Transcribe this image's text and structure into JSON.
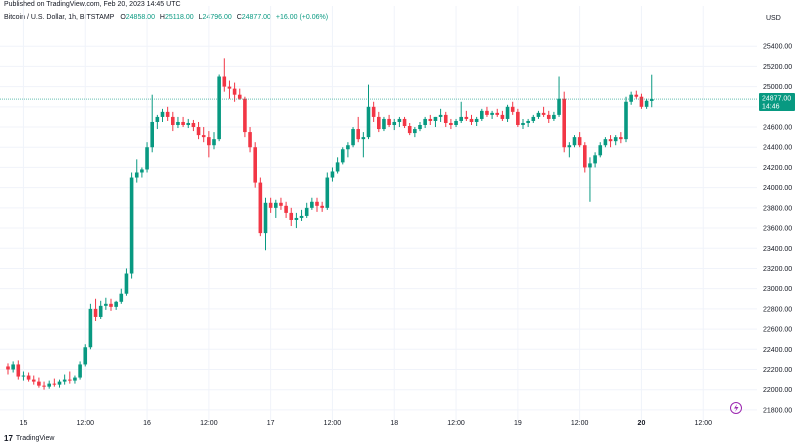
{
  "published": "Published on TradingView.com, Feb 20, 2023 14:45 UTC",
  "header": {
    "symbol": "Bitcoin / U.S. Dollar, 1h, BITSTAMP",
    "o_label": "O",
    "o": "24858.00",
    "h_label": "H",
    "h": "25118.00",
    "l_label": "L",
    "l": "24796.00",
    "c_label": "C",
    "c": "24877.00",
    "change": "+16.00 (+0.06%)"
  },
  "footer": {
    "brand": "TradingView",
    "logo": "17"
  },
  "colors": {
    "up": "#089981",
    "down": "#f23645",
    "grid": "#f0f3fa",
    "price_line": "#089981",
    "axis_text": "#131722"
  },
  "chart_data": {
    "type": "candlestick",
    "currency_label": "USD",
    "ylim": [
      21700,
      25600
    ],
    "y_ticks": [
      21800,
      22000,
      22200,
      22400,
      22600,
      22800,
      23000,
      23200,
      23400,
      23600,
      23800,
      24000,
      24200,
      24400,
      24600,
      24800,
      25000,
      25200,
      25400
    ],
    "x_ticks": [
      {
        "i": 3,
        "label": "15",
        "bold": false
      },
      {
        "i": 15,
        "label": "12:00",
        "bold": false
      },
      {
        "i": 27,
        "label": "16",
        "bold": false
      },
      {
        "i": 39,
        "label": "12:00",
        "bold": false
      },
      {
        "i": 51,
        "label": "17",
        "bold": false
      },
      {
        "i": 63,
        "label": "12:00",
        "bold": false
      },
      {
        "i": 75,
        "label": "18",
        "bold": false
      },
      {
        "i": 87,
        "label": "12:00",
        "bold": false
      },
      {
        "i": 99,
        "label": "19",
        "bold": false
      },
      {
        "i": 111,
        "label": "12:00",
        "bold": false
      },
      {
        "i": 123,
        "label": "20",
        "bold": true
      },
      {
        "i": 135,
        "label": "12:00",
        "bold": false
      }
    ],
    "last_price": {
      "value": 24877,
      "label": "24877.00",
      "time": "14:46"
    },
    "candles": [
      [
        22230,
        22260,
        22150,
        22200
      ],
      [
        22200,
        22280,
        22170,
        22250
      ],
      [
        22250,
        22290,
        22100,
        22130
      ],
      [
        22130,
        22180,
        22090,
        22140
      ],
      [
        22140,
        22170,
        22080,
        22100
      ],
      [
        22100,
        22140,
        22050,
        22080
      ],
      [
        22080,
        22120,
        22020,
        22040
      ],
      [
        22040,
        22080,
        22000,
        22030
      ],
      [
        22030,
        22090,
        22010,
        22060
      ],
      [
        22060,
        22110,
        22030,
        22050
      ],
      [
        22050,
        22100,
        22020,
        22080
      ],
      [
        22080,
        22150,
        22050,
        22100
      ],
      [
        22100,
        22180,
        22060,
        22090
      ],
      [
        22090,
        22140,
        22060,
        22120
      ],
      [
        22120,
        22280,
        22100,
        22250
      ],
      [
        22250,
        22450,
        22230,
        22420
      ],
      [
        22420,
        22850,
        22400,
        22800
      ],
      [
        22800,
        22900,
        22680,
        22720
      ],
      [
        22720,
        22880,
        22700,
        22830
      ],
      [
        22830,
        22910,
        22790,
        22850
      ],
      [
        22850,
        22900,
        22780,
        22820
      ],
      [
        22820,
        22880,
        22790,
        22870
      ],
      [
        22870,
        23000,
        22850,
        22950
      ],
      [
        22950,
        23200,
        22930,
        23150
      ],
      [
        23150,
        24150,
        23100,
        24100
      ],
      [
        24100,
        24280,
        24050,
        24150
      ],
      [
        24150,
        24200,
        24100,
        24180
      ],
      [
        24180,
        24450,
        24150,
        24400
      ],
      [
        24400,
        24920,
        24350,
        24650
      ],
      [
        24650,
        24720,
        24580,
        24700
      ],
      [
        24700,
        24780,
        24650,
        24750
      ],
      [
        24750,
        24800,
        24660,
        24700
      ],
      [
        24700,
        24750,
        24560,
        24620
      ],
      [
        24620,
        24700,
        24590,
        24650
      ],
      [
        24650,
        24700,
        24600,
        24620
      ],
      [
        24620,
        24680,
        24590,
        24640
      ],
      [
        24640,
        24670,
        24560,
        24600
      ],
      [
        24600,
        24650,
        24480,
        24520
      ],
      [
        24520,
        24600,
        24450,
        24500
      ],
      [
        24500,
        24560,
        24300,
        24420
      ],
      [
        24420,
        24550,
        24380,
        24480
      ],
      [
        24480,
        25120,
        24460,
        25100
      ],
      [
        25100,
        25280,
        24950,
        25000
      ],
      [
        25000,
        25060,
        24880,
        24980
      ],
      [
        24980,
        25040,
        24850,
        24920
      ],
      [
        24920,
        24980,
        24870,
        24880
      ],
      [
        24880,
        24900,
        24500,
        24550
      ],
      [
        24550,
        24600,
        24350,
        24400
      ],
      [
        24400,
        24450,
        24000,
        24050
      ],
      [
        24050,
        24100,
        23520,
        23550
      ],
      [
        23550,
        23900,
        23380,
        23850
      ],
      [
        23850,
        23900,
        23750,
        23800
      ],
      [
        23800,
        23880,
        23700,
        23850
      ],
      [
        23850,
        23900,
        23780,
        23820
      ],
      [
        23820,
        23860,
        23700,
        23750
      ],
      [
        23750,
        23800,
        23620,
        23680
      ],
      [
        23680,
        23750,
        23600,
        23700
      ],
      [
        23700,
        23780,
        23670,
        23720
      ],
      [
        23720,
        23850,
        23700,
        23800
      ],
      [
        23800,
        23900,
        23780,
        23860
      ],
      [
        23860,
        23900,
        23760,
        23820
      ],
      [
        23820,
        23860,
        23760,
        23800
      ],
      [
        23800,
        24150,
        23780,
        24100
      ],
      [
        24100,
        24200,
        24060,
        24160
      ],
      [
        24160,
        24300,
        24140,
        24250
      ],
      [
        24250,
        24400,
        24230,
        24380
      ],
      [
        24380,
        24450,
        24300,
        24420
      ],
      [
        24420,
        24600,
        24400,
        24580
      ],
      [
        24580,
        24700,
        24450,
        24480
      ],
      [
        24480,
        24550,
        24300,
        24500
      ],
      [
        24500,
        25020,
        24480,
        24800
      ],
      [
        24800,
        24850,
        24650,
        24700
      ],
      [
        24700,
        24750,
        24550,
        24580
      ],
      [
        24580,
        24700,
        24560,
        24680
      ],
      [
        24680,
        24720,
        24600,
        24620
      ],
      [
        24620,
        24680,
        24570,
        24650
      ],
      [
        24650,
        24700,
        24600,
        24680
      ],
      [
        24680,
        24700,
        24590,
        24610
      ],
      [
        24610,
        24640,
        24520,
        24540
      ],
      [
        24540,
        24600,
        24500,
        24580
      ],
      [
        24580,
        24650,
        24560,
        24620
      ],
      [
        24620,
        24700,
        24590,
        24680
      ],
      [
        24680,
        24720,
        24620,
        24660
      ],
      [
        24660,
        24700,
        24600,
        24700
      ],
      [
        24700,
        24780,
        24650,
        24720
      ],
      [
        24720,
        24750,
        24600,
        24640
      ],
      [
        24640,
        24680,
        24580,
        24620
      ],
      [
        24620,
        24680,
        24600,
        24660
      ],
      [
        24660,
        24850,
        24640,
        24700
      ],
      [
        24700,
        24760,
        24660,
        24680
      ],
      [
        24680,
        24720,
        24620,
        24650
      ],
      [
        24650,
        24700,
        24610,
        24680
      ],
      [
        24680,
        24780,
        24660,
        24760
      ],
      [
        24760,
        24800,
        24700,
        24720
      ],
      [
        24720,
        24760,
        24680,
        24740
      ],
      [
        24740,
        24780,
        24700,
        24720
      ],
      [
        24720,
        24760,
        24660,
        24680
      ],
      [
        24680,
        24820,
        24650,
        24800
      ],
      [
        24800,
        24850,
        24720,
        24750
      ],
      [
        24750,
        24780,
        24600,
        24620
      ],
      [
        24620,
        24680,
        24580,
        24640
      ],
      [
        24640,
        24680,
        24600,
        24660
      ],
      [
        24660,
        24720,
        24640,
        24700
      ],
      [
        24700,
        24760,
        24680,
        24740
      ],
      [
        24740,
        24800,
        24700,
        24720
      ],
      [
        24720,
        24760,
        24640,
        24680
      ],
      [
        24680,
        24750,
        24660,
        24720
      ],
      [
        24720,
        25100,
        24700,
        24880
      ],
      [
        24880,
        24950,
        24350,
        24400
      ],
      [
        24400,
        24450,
        24300,
        24420
      ],
      [
        24420,
        24520,
        24400,
        24500
      ],
      [
        24500,
        24550,
        24400,
        24420
      ],
      [
        24420,
        24450,
        24150,
        24200
      ],
      [
        24200,
        24300,
        23860,
        24240
      ],
      [
        24240,
        24350,
        24200,
        24320
      ],
      [
        24320,
        24450,
        24300,
        24420
      ],
      [
        24420,
        24500,
        24400,
        24480
      ],
      [
        24480,
        24520,
        24400,
        24460
      ],
      [
        24460,
        24520,
        24420,
        24500
      ],
      [
        24500,
        24550,
        24440,
        24480
      ],
      [
        24480,
        24900,
        24450,
        24850
      ],
      [
        24850,
        24950,
        24820,
        24920
      ],
      [
        24920,
        24960,
        24880,
        24900
      ],
      [
        24900,
        24930,
        24780,
        24800
      ],
      [
        24800,
        24880,
        24780,
        24860
      ],
      [
        24858,
        25118,
        24796,
        24877
      ]
    ]
  }
}
